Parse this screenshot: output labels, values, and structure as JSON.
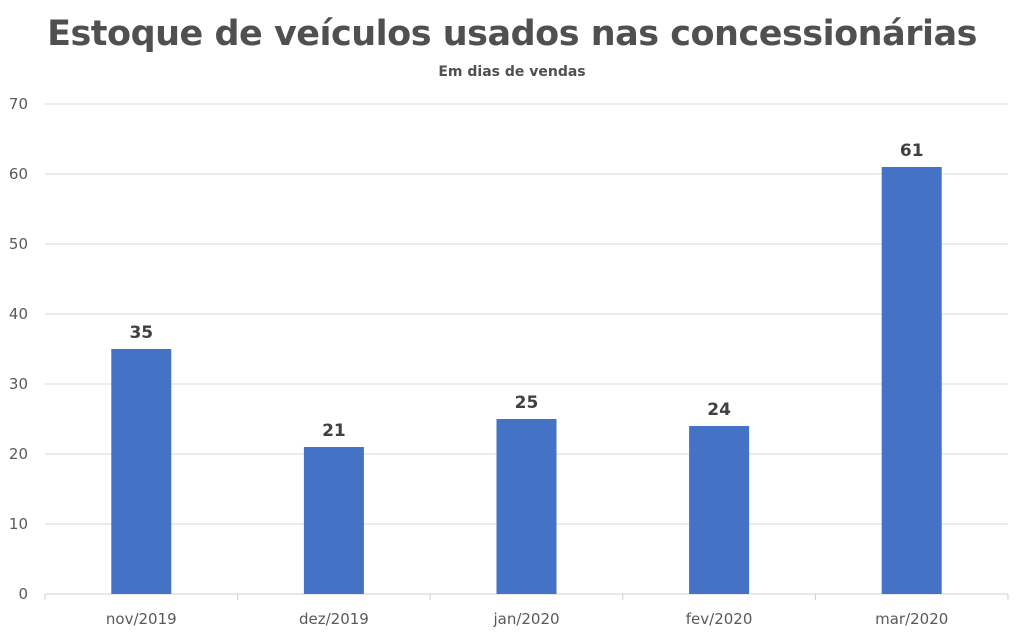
{
  "chart_data": {
    "type": "bar",
    "title": "Estoque de veículos usados nas concessionárias",
    "subtitle": "Em dias de vendas",
    "categories": [
      "nov/2019",
      "dez/2019",
      "jan/2020",
      "fev/2020",
      "mar/2020"
    ],
    "values": [
      35,
      21,
      25,
      24,
      61
    ],
    "xlabel": "",
    "ylabel": "",
    "ylim": [
      0,
      70
    ],
    "yticks": [
      0,
      10,
      20,
      30,
      40,
      50,
      60,
      70
    ],
    "grid": true,
    "legend": "none",
    "bar_color": "#4472C4",
    "data_labels": true
  }
}
